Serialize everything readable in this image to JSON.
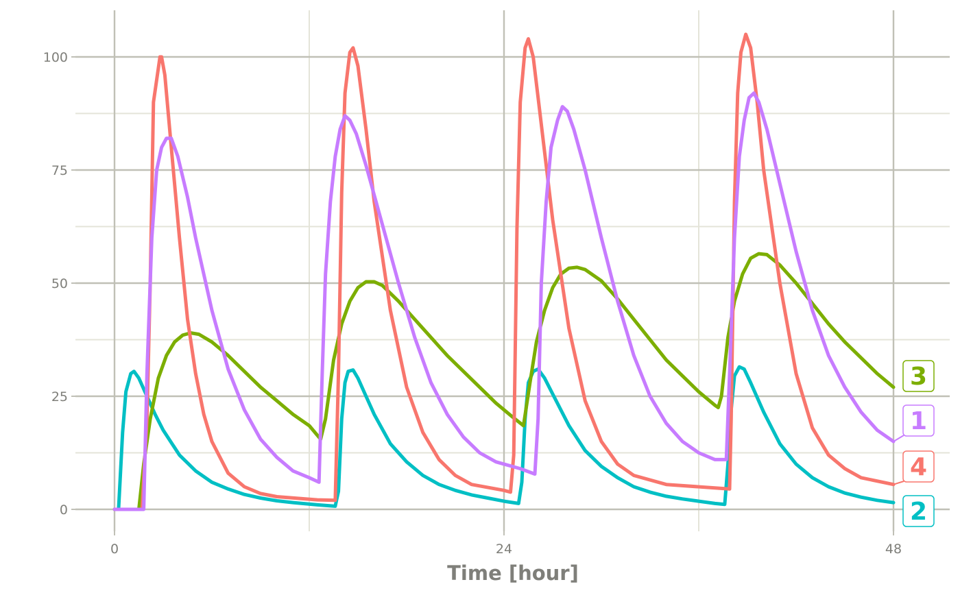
{
  "chart_data": {
    "type": "line",
    "title": "",
    "xlabel": "Time [hour]",
    "ylabel": "",
    "xlim": [
      -2.9,
      51.1
    ],
    "ylim": [
      -5,
      110
    ],
    "x_ticks": [
      0,
      24,
      48
    ],
    "x_tick_labels": [
      "0",
      "24",
      "48"
    ],
    "x_minor_ticks": [
      12,
      36
    ],
    "y_ticks": [
      0,
      25,
      50,
      75,
      100
    ],
    "y_tick_labels": [
      "0",
      "25",
      "50",
      "75",
      "100"
    ],
    "y_minor_ticks": [
      12.5,
      37.5,
      62.5,
      87.5
    ],
    "grid": true,
    "legend": "direct labels at right end",
    "colors": {
      "grid_major": "#c0c0b6",
      "grid_minor": "#e4e4d9",
      "text": "#7f7f7a"
    },
    "series": [
      {
        "name": "1",
        "color": "#C77CFF",
        "points": [
          [
            0,
            0
          ],
          [
            1.8,
            0
          ],
          [
            2.0,
            30
          ],
          [
            2.3,
            60
          ],
          [
            2.6,
            75
          ],
          [
            2.9,
            80
          ],
          [
            3.2,
            82
          ],
          [
            3.5,
            82
          ],
          [
            3.9,
            78
          ],
          [
            4.5,
            69
          ],
          [
            5,
            60
          ],
          [
            6,
            44
          ],
          [
            7,
            31
          ],
          [
            8,
            22
          ],
          [
            9,
            15.5
          ],
          [
            10,
            11.5
          ],
          [
            11,
            8.5
          ],
          [
            12,
            7
          ],
          [
            12.6,
            6
          ],
          [
            12.8,
            30
          ],
          [
            13.0,
            52
          ],
          [
            13.3,
            68
          ],
          [
            13.6,
            78
          ],
          [
            13.9,
            84
          ],
          [
            14.2,
            87
          ],
          [
            14.5,
            86
          ],
          [
            14.9,
            83
          ],
          [
            15.5,
            76
          ],
          [
            16.5,
            63
          ],
          [
            17.5,
            50
          ],
          [
            18.5,
            38
          ],
          [
            19.5,
            28
          ],
          [
            20.5,
            21
          ],
          [
            21.5,
            16
          ],
          [
            22.5,
            12.5
          ],
          [
            23.5,
            10.5
          ],
          [
            25,
            9
          ],
          [
            25.9,
            7.8
          ],
          [
            26.1,
            20
          ],
          [
            26.3,
            50
          ],
          [
            26.6,
            68
          ],
          [
            26.9,
            80
          ],
          [
            27.3,
            86
          ],
          [
            27.6,
            89
          ],
          [
            27.9,
            88
          ],
          [
            28.3,
            84
          ],
          [
            29,
            75
          ],
          [
            30,
            60
          ],
          [
            31,
            46
          ],
          [
            32,
            34
          ],
          [
            33,
            25
          ],
          [
            34,
            19
          ],
          [
            35,
            15
          ],
          [
            36,
            12.5
          ],
          [
            37,
            11
          ],
          [
            37.7,
            11
          ],
          [
            37.9,
            30
          ],
          [
            38.2,
            60
          ],
          [
            38.5,
            78
          ],
          [
            38.8,
            86
          ],
          [
            39.1,
            91
          ],
          [
            39.4,
            92
          ],
          [
            39.7,
            90
          ],
          [
            40.2,
            84
          ],
          [
            41,
            72
          ],
          [
            42,
            57
          ],
          [
            43,
            44
          ],
          [
            44,
            34
          ],
          [
            45,
            27
          ],
          [
            46,
            21.5
          ],
          [
            47,
            17.5
          ],
          [
            48,
            15
          ]
        ]
      },
      {
        "name": "2",
        "color": "#00BFC4",
        "points": [
          [
            0,
            0
          ],
          [
            0.25,
            0
          ],
          [
            0.5,
            17
          ],
          [
            0.7,
            26
          ],
          [
            1.0,
            30
          ],
          [
            1.2,
            30.5
          ],
          [
            1.5,
            29
          ],
          [
            2,
            25
          ],
          [
            2.5,
            21
          ],
          [
            3,
            17.5
          ],
          [
            4,
            12
          ],
          [
            5,
            8.5
          ],
          [
            6,
            6
          ],
          [
            7,
            4.5
          ],
          [
            8,
            3.3
          ],
          [
            9,
            2.5
          ],
          [
            10,
            1.9
          ],
          [
            11,
            1.5
          ],
          [
            12.5,
            1
          ],
          [
            13.6,
            0.7
          ],
          [
            13.8,
            4
          ],
          [
            14.0,
            20
          ],
          [
            14.2,
            28
          ],
          [
            14.4,
            30.5
          ],
          [
            14.7,
            30.8
          ],
          [
            15,
            29
          ],
          [
            15.5,
            25
          ],
          [
            16,
            21
          ],
          [
            17,
            14.5
          ],
          [
            18,
            10.5
          ],
          [
            19,
            7.5
          ],
          [
            20,
            5.5
          ],
          [
            21,
            4.2
          ],
          [
            22,
            3.2
          ],
          [
            23,
            2.5
          ],
          [
            24,
            1.8
          ],
          [
            24.9,
            1.3
          ],
          [
            25.1,
            6
          ],
          [
            25.3,
            20
          ],
          [
            25.5,
            28
          ],
          [
            25.8,
            30.5
          ],
          [
            26.1,
            31
          ],
          [
            26.5,
            29
          ],
          [
            27,
            25.5
          ],
          [
            28,
            18.5
          ],
          [
            29,
            13
          ],
          [
            30,
            9.5
          ],
          [
            31,
            7
          ],
          [
            32,
            5
          ],
          [
            33,
            3.8
          ],
          [
            34,
            2.9
          ],
          [
            35,
            2.3
          ],
          [
            36,
            1.8
          ],
          [
            37,
            1.3
          ],
          [
            37.6,
            1.1
          ],
          [
            37.8,
            10
          ],
          [
            38.0,
            22
          ],
          [
            38.2,
            29.5
          ],
          [
            38.5,
            31.5
          ],
          [
            38.8,
            31
          ],
          [
            39.2,
            28
          ],
          [
            40,
            21.5
          ],
          [
            41,
            14.5
          ],
          [
            42,
            10
          ],
          [
            43,
            7
          ],
          [
            44,
            5
          ],
          [
            45,
            3.6
          ],
          [
            46,
            2.7
          ],
          [
            47,
            2
          ],
          [
            48,
            1.5
          ]
        ]
      },
      {
        "name": "3",
        "color": "#7CAE00",
        "points": [
          [
            0,
            0
          ],
          [
            1.5,
            0
          ],
          [
            1.8,
            10
          ],
          [
            2.2,
            20
          ],
          [
            2.7,
            29
          ],
          [
            3.2,
            34
          ],
          [
            3.7,
            37
          ],
          [
            4.2,
            38.5
          ],
          [
            4.7,
            39
          ],
          [
            5.2,
            38.7
          ],
          [
            6,
            37
          ],
          [
            7,
            34
          ],
          [
            8,
            30.5
          ],
          [
            9,
            27
          ],
          [
            10,
            24
          ],
          [
            11,
            21
          ],
          [
            12,
            18.5
          ],
          [
            12.7,
            15.5
          ],
          [
            13.0,
            20
          ],
          [
            13.5,
            33
          ],
          [
            14,
            41
          ],
          [
            14.5,
            46
          ],
          [
            15,
            49
          ],
          [
            15.5,
            50.3
          ],
          [
            16,
            50.3
          ],
          [
            16.5,
            49.5
          ],
          [
            17.5,
            46
          ],
          [
            18.5,
            42
          ],
          [
            19.5,
            38
          ],
          [
            20.5,
            34
          ],
          [
            21.5,
            30.5
          ],
          [
            22.5,
            27
          ],
          [
            23.5,
            23.5
          ],
          [
            24.5,
            20.5
          ],
          [
            25.2,
            18.5
          ],
          [
            25.6,
            28
          ],
          [
            26,
            37
          ],
          [
            26.5,
            44
          ],
          [
            27,
            49
          ],
          [
            27.5,
            52
          ],
          [
            28,
            53.3
          ],
          [
            28.5,
            53.5
          ],
          [
            29,
            53
          ],
          [
            30,
            50.5
          ],
          [
            31,
            46.5
          ],
          [
            32,
            42
          ],
          [
            33,
            37.5
          ],
          [
            34,
            33
          ],
          [
            35,
            29.5
          ],
          [
            36,
            26
          ],
          [
            37,
            23
          ],
          [
            37.2,
            22.5
          ],
          [
            37.4,
            25
          ],
          [
            37.8,
            38
          ],
          [
            38.2,
            46
          ],
          [
            38.7,
            52
          ],
          [
            39.2,
            55.5
          ],
          [
            39.7,
            56.5
          ],
          [
            40.2,
            56.3
          ],
          [
            41,
            54
          ],
          [
            42,
            50
          ],
          [
            43,
            45.5
          ],
          [
            44,
            41
          ],
          [
            45,
            37
          ],
          [
            46,
            33.5
          ],
          [
            47,
            30
          ],
          [
            48,
            27
          ]
        ]
      },
      {
        "name": "4",
        "color": "#F8766D",
        "points": [
          [
            0,
            0
          ],
          [
            1.7,
            0
          ],
          [
            2.0,
            20
          ],
          [
            2.2,
            50
          ],
          [
            2.4,
            90
          ],
          [
            2.8,
            100
          ],
          [
            2.9,
            100
          ],
          [
            3.1,
            96
          ],
          [
            3.5,
            80
          ],
          [
            4,
            60
          ],
          [
            4.5,
            42
          ],
          [
            5,
            30
          ],
          [
            5.5,
            21
          ],
          [
            6,
            15
          ],
          [
            7,
            8
          ],
          [
            8,
            5
          ],
          [
            9,
            3.5
          ],
          [
            10,
            2.8
          ],
          [
            12.5,
            2.1
          ],
          [
            13.6,
            2.0
          ],
          [
            13.8,
            30
          ],
          [
            14.0,
            70
          ],
          [
            14.2,
            92
          ],
          [
            14.5,
            101
          ],
          [
            14.7,
            102
          ],
          [
            15,
            98
          ],
          [
            15.5,
            84
          ],
          [
            16,
            68
          ],
          [
            17,
            44
          ],
          [
            18,
            27
          ],
          [
            19,
            17
          ],
          [
            20,
            11
          ],
          [
            21,
            7.5
          ],
          [
            22,
            5.5
          ],
          [
            24,
            4.2
          ],
          [
            24.4,
            3.8
          ],
          [
            24.6,
            12
          ],
          [
            24.8,
            62
          ],
          [
            25,
            90
          ],
          [
            25.3,
            102
          ],
          [
            25.5,
            104
          ],
          [
            25.8,
            100
          ],
          [
            26.2,
            88
          ],
          [
            27,
            64
          ],
          [
            28,
            40
          ],
          [
            29,
            24
          ],
          [
            30,
            15
          ],
          [
            31,
            10
          ],
          [
            32,
            7.5
          ],
          [
            34,
            5.5
          ],
          [
            37.9,
            4.5
          ],
          [
            38.0,
            20
          ],
          [
            38.2,
            68
          ],
          [
            38.4,
            92
          ],
          [
            38.6,
            101
          ],
          [
            38.9,
            105
          ],
          [
            39.2,
            102
          ],
          [
            39.6,
            90
          ],
          [
            40,
            75
          ],
          [
            41,
            50
          ],
          [
            42,
            30
          ],
          [
            43,
            18
          ],
          [
            44,
            12
          ],
          [
            45,
            9
          ],
          [
            46,
            7
          ],
          [
            48,
            5.5
          ]
        ]
      }
    ],
    "end_labels_order": [
      "3",
      "1",
      "4",
      "2"
    ]
  }
}
